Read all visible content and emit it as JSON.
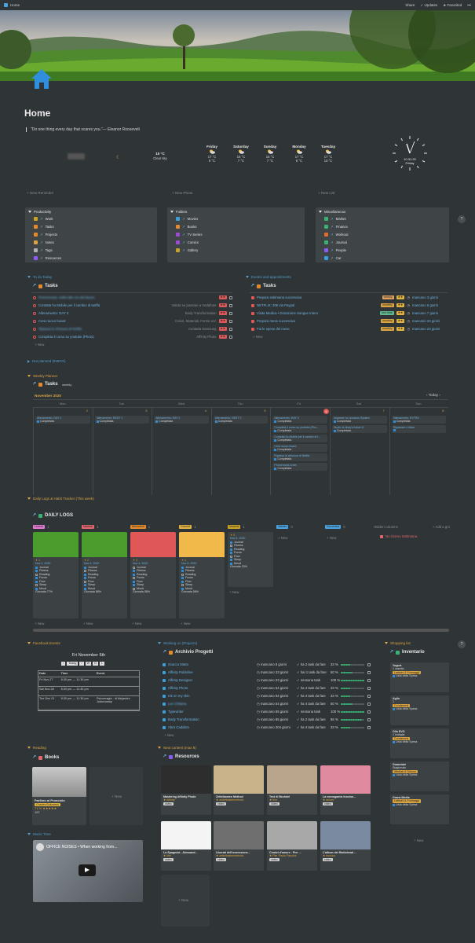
{
  "topbar": {
    "title": "Home",
    "share": "Share",
    "updates": "Updates",
    "favorited": "Favorited",
    "more": "•••"
  },
  "page": {
    "title": "Home",
    "quote": "\"Do one thing every day that scares you.\"— Eleanor Roosevelt"
  },
  "weather": {
    "current_temp": "10 °C",
    "current_desc": "Clear sky",
    "days": [
      {
        "day": "Friday",
        "hi": "17 °C",
        "lo": "9 °C"
      },
      {
        "day": "Saturday",
        "hi": "16 °C",
        "lo": "7 °C"
      },
      {
        "day": "Sunday",
        "hi": "16 °C",
        "lo": "7 °C"
      },
      {
        "day": "Monday",
        "hi": "17 °C",
        "lo": "8 °C"
      },
      {
        "day": "Tuesday",
        "hi": "17 °C",
        "lo": "10 °C"
      }
    ],
    "clock_time": "10:31:29",
    "clock_day": "Friday"
  },
  "quicklinks": {
    "reminder": "+ New Reminder",
    "photo": "+ New Photo",
    "list": "+ New List"
  },
  "menus": [
    {
      "title": "Productivity",
      "items": [
        "Work",
        "Tasks",
        "Projects",
        "Notes",
        "Tags",
        "Resources"
      ],
      "colors": [
        "#c9a227",
        "#e38b2c",
        "#e38b2c",
        "#d9a441",
        "#b0b0b0",
        "#8b5cf6"
      ]
    },
    {
      "title": "Folders",
      "items": [
        "Movies",
        "Books",
        "TV Series",
        "Comics",
        "Gallery"
      ],
      "colors": [
        "#3aa0dc",
        "#e38b2c",
        "#9b4ad6",
        "#9b4ad6",
        "#c9a227"
      ]
    },
    {
      "title": "Miscellaneous",
      "items": [
        "Market",
        "Finance",
        "Workout",
        "Journal",
        "People",
        "Car"
      ],
      "colors": [
        "#3bb273",
        "#3bb273",
        "#e36c2c",
        "#3bb273",
        "#8b5cf6",
        "#3aa0dc"
      ]
    }
  ],
  "todo": {
    "section": "To do Today",
    "db": "Tasks",
    "rows": [
      {
        "t": "Promemoria: ordini alle ore del lavoro",
        "meta": "",
        "blur": true
      },
      {
        "t": "Contatta ho.Mobile per il cambio di tariffa",
        "meta": "Valuta se passare a Vodafone"
      },
      {
        "t": "Allenamento: DAY 3",
        "meta": "Body Transformation"
      },
      {
        "t": "Crea nuovo board",
        "meta": "Colori, Materiali, Forme ecc"
      },
      {
        "t": "Ripassa la chiusura di Netflix",
        "meta": "Contatta Samsung",
        "blur": true
      },
      {
        "t": "Completa il corso su youtube (Photo)",
        "meta": "Affinity Photo"
      }
    ],
    "new": "+ New"
  },
  "events": {
    "section": "Events and appointments",
    "db": "Tasks",
    "rows": [
      {
        "t": "Prepara settimana successiva",
        "tag": "weekly",
        "tc": "#e0a060",
        "when": "mancano 3 giorni"
      },
      {
        "t": "NETFLIX: 30€ via Paypal",
        "tag": "monthly",
        "tc": "#d9a441",
        "when": "mancano 5 giorni"
      },
      {
        "t": "Visita Medica • Donazione Sangue Intero",
        "tag": "one time",
        "tc": "#5fb88f",
        "when": "mancano 7 giorni"
      },
      {
        "t": "Prepara mese successivo",
        "tag": "monthly",
        "tc": "#d9a441",
        "when": "mancano 23 giorni"
      },
      {
        "t": "Fai le spese del mese",
        "tag": "monthly",
        "tc": "#d9a441",
        "when": "mancano 23 giorni"
      }
    ],
    "new": "+ New"
  },
  "notplanned": "Not planned (INBOX)",
  "weekly": {
    "section": "Weekly Planner",
    "db": "Tasks",
    "view": "weekly",
    "month": "November 2020",
    "today": "Today",
    "days": [
      "Mon",
      "Tue",
      "Wed",
      "Thu",
      "Fri",
      "Sat",
      "Sun"
    ],
    "nums": [
      "2",
      "3",
      "4",
      "5",
      "6",
      "7",
      "8"
    ],
    "cols": [
      [
        {
          "t": "Allenamento: DAY 1",
          "s": "Completata"
        }
      ],
      [
        {
          "t": "Allenamento: REST 1",
          "s": "Completata"
        }
      ],
      [
        {
          "t": "Allenamento: DAY 2",
          "s": "Completata"
        }
      ],
      [
        {
          "t": "Allenamento: REST 2",
          "s": "Completata"
        }
      ],
      [
        {
          "t": "Allenamento: DAY 3",
          "s": "Completata"
        },
        {
          "t": "Completa il corso su youtube (Pho...",
          "s": "Completata"
        },
        {
          "t": "Contatta ho.Mobile per il cambio di t...",
          "s": "Completata"
        },
        {
          "t": "Crea nuovo board",
          "s": "Completata"
        },
        {
          "t": "Ripassa la chiusura di Netflix",
          "s": "Completata"
        },
        {
          "t": "Promemoria ordini",
          "s": "Completata"
        }
      ],
      [
        {
          "t": "Imparare la Linnaeus System",
          "s": "Completata"
        },
        {
          "t": "Studio la Ilnay's Indian D",
          "s": "Completata"
        }
      ],
      [
        {
          "t": "Allenamento: EXTRA",
          "s": "Completata"
        },
        {
          "t": "Ripassare e rifare",
          "s": ""
        }
      ]
    ]
  },
  "daily": {
    "section": "Daily Logs & Habit Tracker (This week)",
    "db": "DAILY LOGS",
    "groups": [
      {
        "n": "Lunedì",
        "c": "1",
        "col": "#e07ad0"
      },
      {
        "n": "Martedì",
        "c": "1",
        "col": "#e0676b"
      },
      {
        "n": "Mercoledì",
        "c": "1",
        "col": "#e38b2c"
      },
      {
        "n": "Giovedì",
        "c": "1",
        "col": "#e3b341"
      },
      {
        "n": "Venerdì",
        "c": "1",
        "col": "#c9a227"
      },
      {
        "n": "Sabato",
        "c": "0",
        "col": "#4aa3df"
      },
      {
        "n": "Domenica",
        "c": "0",
        "col": "#4aa3df"
      }
    ],
    "hidden": "Hidden columns",
    "nogiorno": "No Giorno Settimana",
    "addgroup": "+ Add a gro",
    "cards": [
      {
        "date": "Nov 2, 2020",
        "mood": "Giornata 77%",
        "img": "#4a9c2c"
      },
      {
        "date": "Nov 3, 2020",
        "mood": "Giornata 88%",
        "img": "#4a9c2c"
      },
      {
        "date": "Nov 4, 2020",
        "mood": "Giornata 58%",
        "img": "#e05757"
      },
      {
        "date": "Nov 5, 2020",
        "mood": "Giornata 58%",
        "img": "#f0b94a"
      },
      {
        "date": "Nov 6, 2020",
        "mood": "Giornata 33%",
        "img": ""
      }
    ],
    "habits": [
      "Journal",
      "Fitness",
      "Reading",
      "Focus",
      "Flow",
      "Sleep",
      "Mood"
    ],
    "new": "+ New"
  },
  "facebook": {
    "section": "Facebook Events",
    "date": "Fri November 6th",
    "today": "Today",
    "views": [
      "W",
      "D",
      "L"
    ],
    "headers": [
      "Date",
      "Time",
      "Event"
    ],
    "rows": [
      [
        "Fri Nov 27",
        "8:30 pm — 11:30 pm",
        ""
      ],
      [
        "Sat Nov 28",
        "8:30 pm — 11:30 pm",
        ""
      ],
      [
        "Tue Dec 01",
        "8:30 pm — 11:30 pm",
        "Psicomagia - di Alejandro Jodorowsky"
      ]
    ]
  },
  "projects": {
    "section": "Working on (Projects)",
    "db": "Archivio Progetti",
    "rows": [
      {
        "t": "Scacco Matto",
        "when": "mancano 8 giorni",
        "tasks": "ha 2 task da fare",
        "p": "33 %"
      },
      {
        "t": "Affinity Publisher",
        "when": "mancano 23 giorni",
        "tasks": "hai 1 task da fare",
        "p": "50 %"
      },
      {
        "t": "Affinity Designer",
        "when": "mancano 23 giorni",
        "tasks": "nessuna task",
        "p": "100 %"
      },
      {
        "t": "Affinity Photo",
        "when": "mancano 54 giorni",
        "tasks": "ha 4 task da fare",
        "p": "33 %"
      },
      {
        "t": "Ink on my skin",
        "when": "mancano 54 giorni",
        "tasks": "ha 4 task da fare",
        "p": "33 %"
      },
      {
        "t": "Lex Chitarra",
        "when": "mancano 54 giorni",
        "tasks": "ha 4 task da fare",
        "p": "50 %"
      },
      {
        "t": "Typewriter",
        "when": "mancano 65 giorni",
        "tasks": "nessuna task",
        "p": "100 %"
      },
      {
        "t": "Body Transformation",
        "when": "mancano 85 giorni",
        "tasks": "ha 2 task da fare",
        "p": "86 %"
      },
      {
        "t": "Abra Cadabra",
        "when": "mancano 204 giorni",
        "tasks": "ha 4 task da fare",
        "p": "33 %"
      }
    ],
    "new": "+ New"
  },
  "shopping": {
    "section": "Shopping list",
    "db": "Inventario",
    "cards": [
      {
        "t": "Yogurt",
        "q": "1 vasetto",
        "tag": "Latticini & Formaggi",
        "l": "Lista della Spesa"
      },
      {
        "t": "Aglio",
        "q": "1",
        "tag": "Condimenti",
        "l": "Lista della Spesa"
      },
      {
        "t": "Olio EVO",
        "q": "1 bottiglia",
        "tag": "Condimenti",
        "l": "Lista della Spesa"
      },
      {
        "t": "Guanciale",
        "q": "Stagionato",
        "tag": "Affettati & Salumi",
        "l": "Lista della Spesa"
      },
      {
        "t": "Grana Media",
        "q": "",
        "tag": "Latticini & Formaggi",
        "l": "Lista della Spesa"
      }
    ],
    "new": "+ New"
  },
  "reading": {
    "section": "Reading",
    "db": "Books",
    "book": "Parlimo al Pronciolo",
    "author": "Charles Bukowski",
    "pct": "71 %",
    "pages": "197",
    "new": "+ New"
  },
  "music": {
    "section": "Music Time",
    "video": "OFFICE NOISES • When working from..."
  },
  "next": {
    "section": "Next content (max 8)",
    "db": "Resources",
    "cards": [
      {
        "t": "Mastering Affinity Photo",
        "tag": "Affinity"
      },
      {
        "t": "Zettelkasten Method",
        "tag": "zettelkastenmetodo"
      },
      {
        "t": "Test di Bechdel",
        "tag": "film"
      },
      {
        "t": "La monogamia funzion...",
        "tag": "amore"
      },
      {
        "t": "La Spagnola - Alessand...",
        "tag": "libri"
      },
      {
        "t": "Liberati dell'ossessione...",
        "tag": "zettelkastenmetodo"
      },
      {
        "t": "Comizi d'amore - Pier ...",
        "tag": "Pier Paolo Pasolini"
      },
      {
        "t": "L'album dei Radiohead ...",
        "tag": "musica"
      }
    ],
    "new": "+ New"
  }
}
